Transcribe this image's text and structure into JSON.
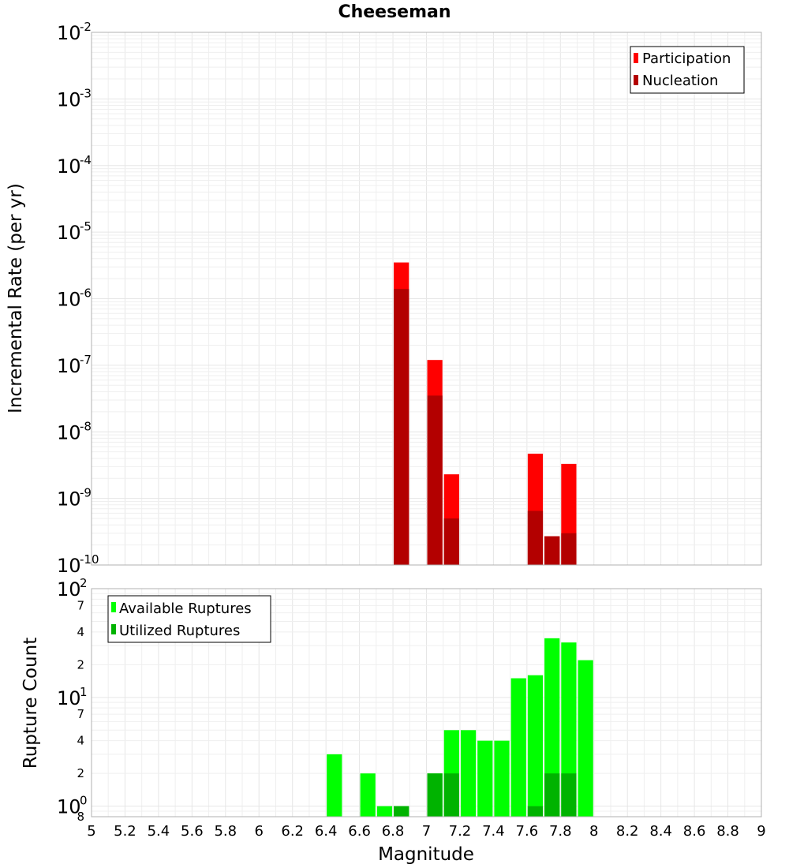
{
  "chart_data": [
    {
      "type": "bar",
      "title": "Cheeseman",
      "ylabel": "Incremental Rate (per yr)",
      "xlabel": "",
      "yscale": "log",
      "xlim": [
        5,
        9
      ],
      "ylim": [
        1e-10,
        0.01
      ],
      "bar_width": 0.1,
      "legend": "top-right",
      "grid": true,
      "ytick_exponents": [
        "-2",
        "-3",
        "-4",
        "-5",
        "-6",
        "-7",
        "-8",
        "-9",
        "-10"
      ],
      "series": [
        {
          "name": "Participation",
          "color": "#ff0000",
          "x": [
            6.85,
            7.05,
            7.15,
            7.65,
            7.75,
            7.85
          ],
          "values": [
            3.5e-06,
            1.2e-07,
            2.3e-09,
            4.7e-09,
            2.7e-10,
            3.3e-09
          ]
        },
        {
          "name": "Nucleation",
          "color": "#b30000",
          "x": [
            6.85,
            7.05,
            7.15,
            7.65,
            7.75,
            7.85
          ],
          "values": [
            1.4e-06,
            3.5e-08,
            5e-10,
            6.5e-10,
            2.7e-10,
            3e-10
          ]
        }
      ]
    },
    {
      "type": "bar",
      "title": "",
      "ylabel": "Rupture Count",
      "xlabel": "Magnitude",
      "yscale": "log",
      "xlim": [
        5,
        9
      ],
      "ylim": [
        0.8,
        100
      ],
      "bar_width": 0.1,
      "legend": "top-left",
      "grid": true,
      "xticks": [
        "5",
        "5.2",
        "5.4",
        "5.6",
        "5.8",
        "6",
        "6.2",
        "6.4",
        "6.6",
        "6.8",
        "7",
        "7.2",
        "7.4",
        "7.6",
        "7.8",
        "8",
        "8.2",
        "8.4",
        "8.6",
        "8.8",
        "9"
      ],
      "major_ticks": [
        {
          "value": 100,
          "base": "10",
          "exp": "2"
        },
        {
          "value": 10,
          "base": "10",
          "exp": "1"
        },
        {
          "value": 1,
          "base": "10",
          "exp": "0"
        }
      ],
      "minor_ticks": [
        {
          "value": 70,
          "label": "7"
        },
        {
          "value": 40,
          "label": "4"
        },
        {
          "value": 20,
          "label": "2"
        },
        {
          "value": 7,
          "label": "7"
        },
        {
          "value": 4,
          "label": "4"
        },
        {
          "value": 2,
          "label": "2"
        },
        {
          "value": 0.8,
          "label": "8"
        }
      ],
      "series": [
        {
          "name": "Available Ruptures",
          "color": "#00ff00",
          "x": [
            6.45,
            6.65,
            6.75,
            6.85,
            7.05,
            7.15,
            7.25,
            7.35,
            7.45,
            7.55,
            7.65,
            7.75,
            7.85,
            7.95
          ],
          "values": [
            3,
            2,
            1,
            1,
            2,
            5,
            5,
            4,
            4,
            15,
            16,
            35,
            32,
            22
          ]
        },
        {
          "name": "Utilized Ruptures",
          "color": "#00b300",
          "x": [
            6.85,
            7.05,
            7.15,
            7.65,
            7.75,
            7.85
          ],
          "values": [
            1,
            2,
            2,
            1,
            2,
            2
          ]
        }
      ]
    }
  ]
}
